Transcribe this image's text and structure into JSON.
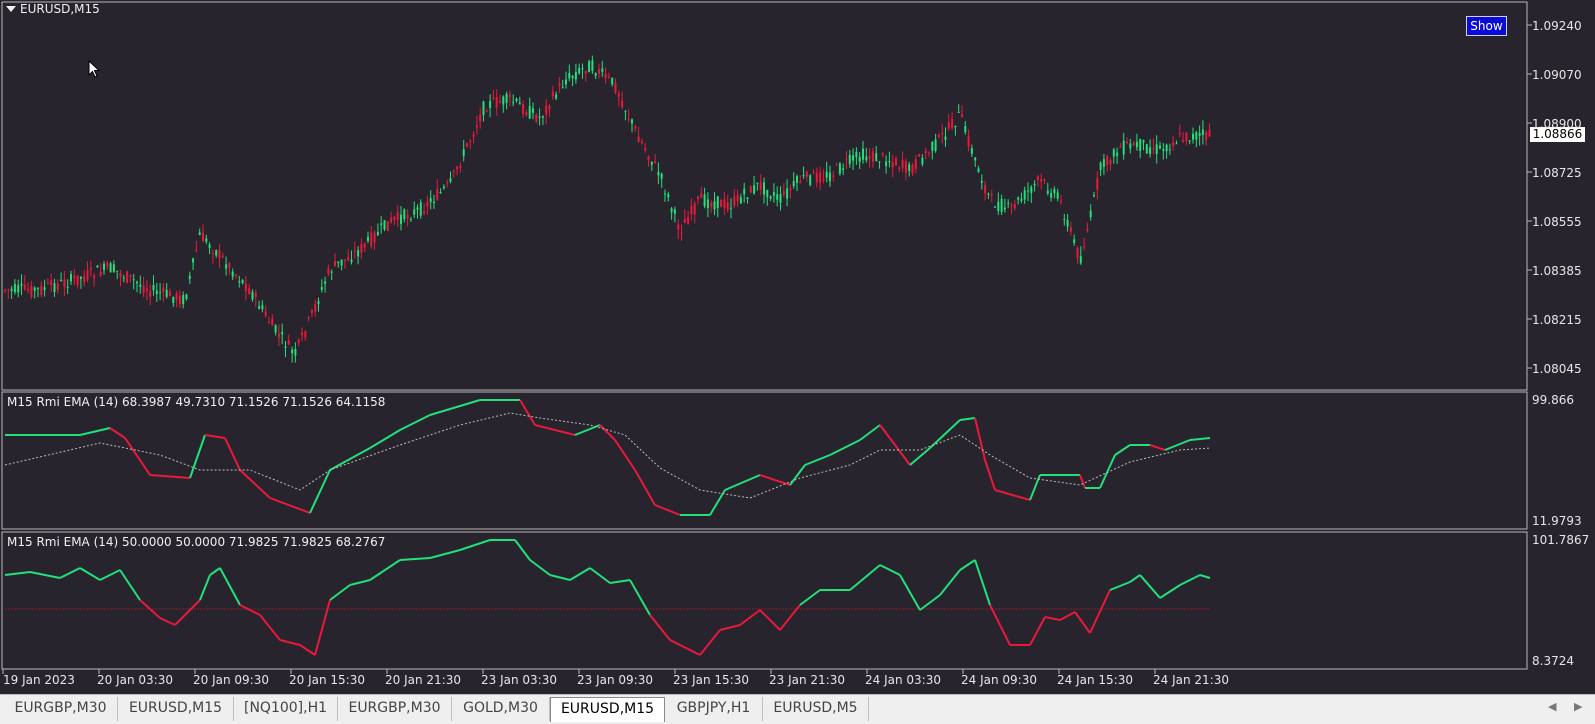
{
  "main_pane": {
    "symbol": "EURUSD,M15",
    "show_label": "Show",
    "current_price": "1.08866",
    "price_ticks": [
      "1.09240",
      "1.09070",
      "1.08900",
      "1.08725",
      "1.08555",
      "1.08385",
      "1.08215",
      "1.08045"
    ]
  },
  "indicator1": {
    "label": "M15 Rmi EMA (14) 68.3987 49.7310 71.1526 71.1526 64.1158",
    "max": "99.866",
    "min": "11.9793"
  },
  "indicator2": {
    "label": "M15 Rmi EMA (14) 50.0000 50.0000 71.9825 71.9825 68.2767",
    "max": "101.7867",
    "min": "8.3724"
  },
  "time_axis": [
    "19 Jan 2023",
    "20 Jan 03:30",
    "20 Jan 09:30",
    "20 Jan 15:30",
    "20 Jan 21:30",
    "23 Jan 03:30",
    "23 Jan 09:30",
    "23 Jan 15:30",
    "23 Jan 21:30",
    "24 Jan 03:30",
    "24 Jan 09:30",
    "24 Jan 15:30",
    "24 Jan 21:30"
  ],
  "tabs": [
    "EURGBP,M30",
    "EURUSD,M15",
    "[NQ100],H1",
    "EURGBP,M30",
    "GOLD,M30",
    "EURUSD,M15",
    "GBPJPY,H1",
    "EURUSD,M5"
  ],
  "active_tab": 5,
  "colors": {
    "background": "#28242d",
    "bull": "#22e07a",
    "bear": "#e8193c",
    "grid_border": "#b8b8b8"
  },
  "icons": [
    "dropdown-triangle-icon",
    "mouse-cursor-icon",
    "scroll-left-icon",
    "scroll-right-icon"
  ]
}
